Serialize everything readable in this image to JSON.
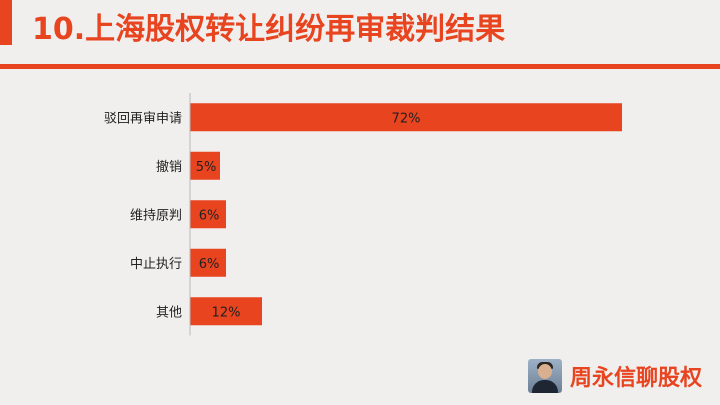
{
  "slide": {
    "title": "10.上海股权转让纠纷再审裁判结果",
    "brand": "周永信聊股权"
  },
  "colors": {
    "accent": "#e8441f",
    "background": "#f1efee",
    "text": "#222222"
  },
  "chart_data": {
    "type": "bar",
    "orientation": "horizontal",
    "categories": [
      "驳回再审申请",
      "撤销",
      "维持原判",
      "中止执行",
      "其他"
    ],
    "values": [
      72,
      5,
      6,
      6,
      12
    ],
    "value_labels": [
      "72%",
      "5%",
      "6%",
      "6%",
      "12%"
    ],
    "unit": "%",
    "xlim": [
      0,
      100
    ],
    "grid": false,
    "legend": "none",
    "title": "",
    "xlabel": "",
    "ylabel": ""
  }
}
